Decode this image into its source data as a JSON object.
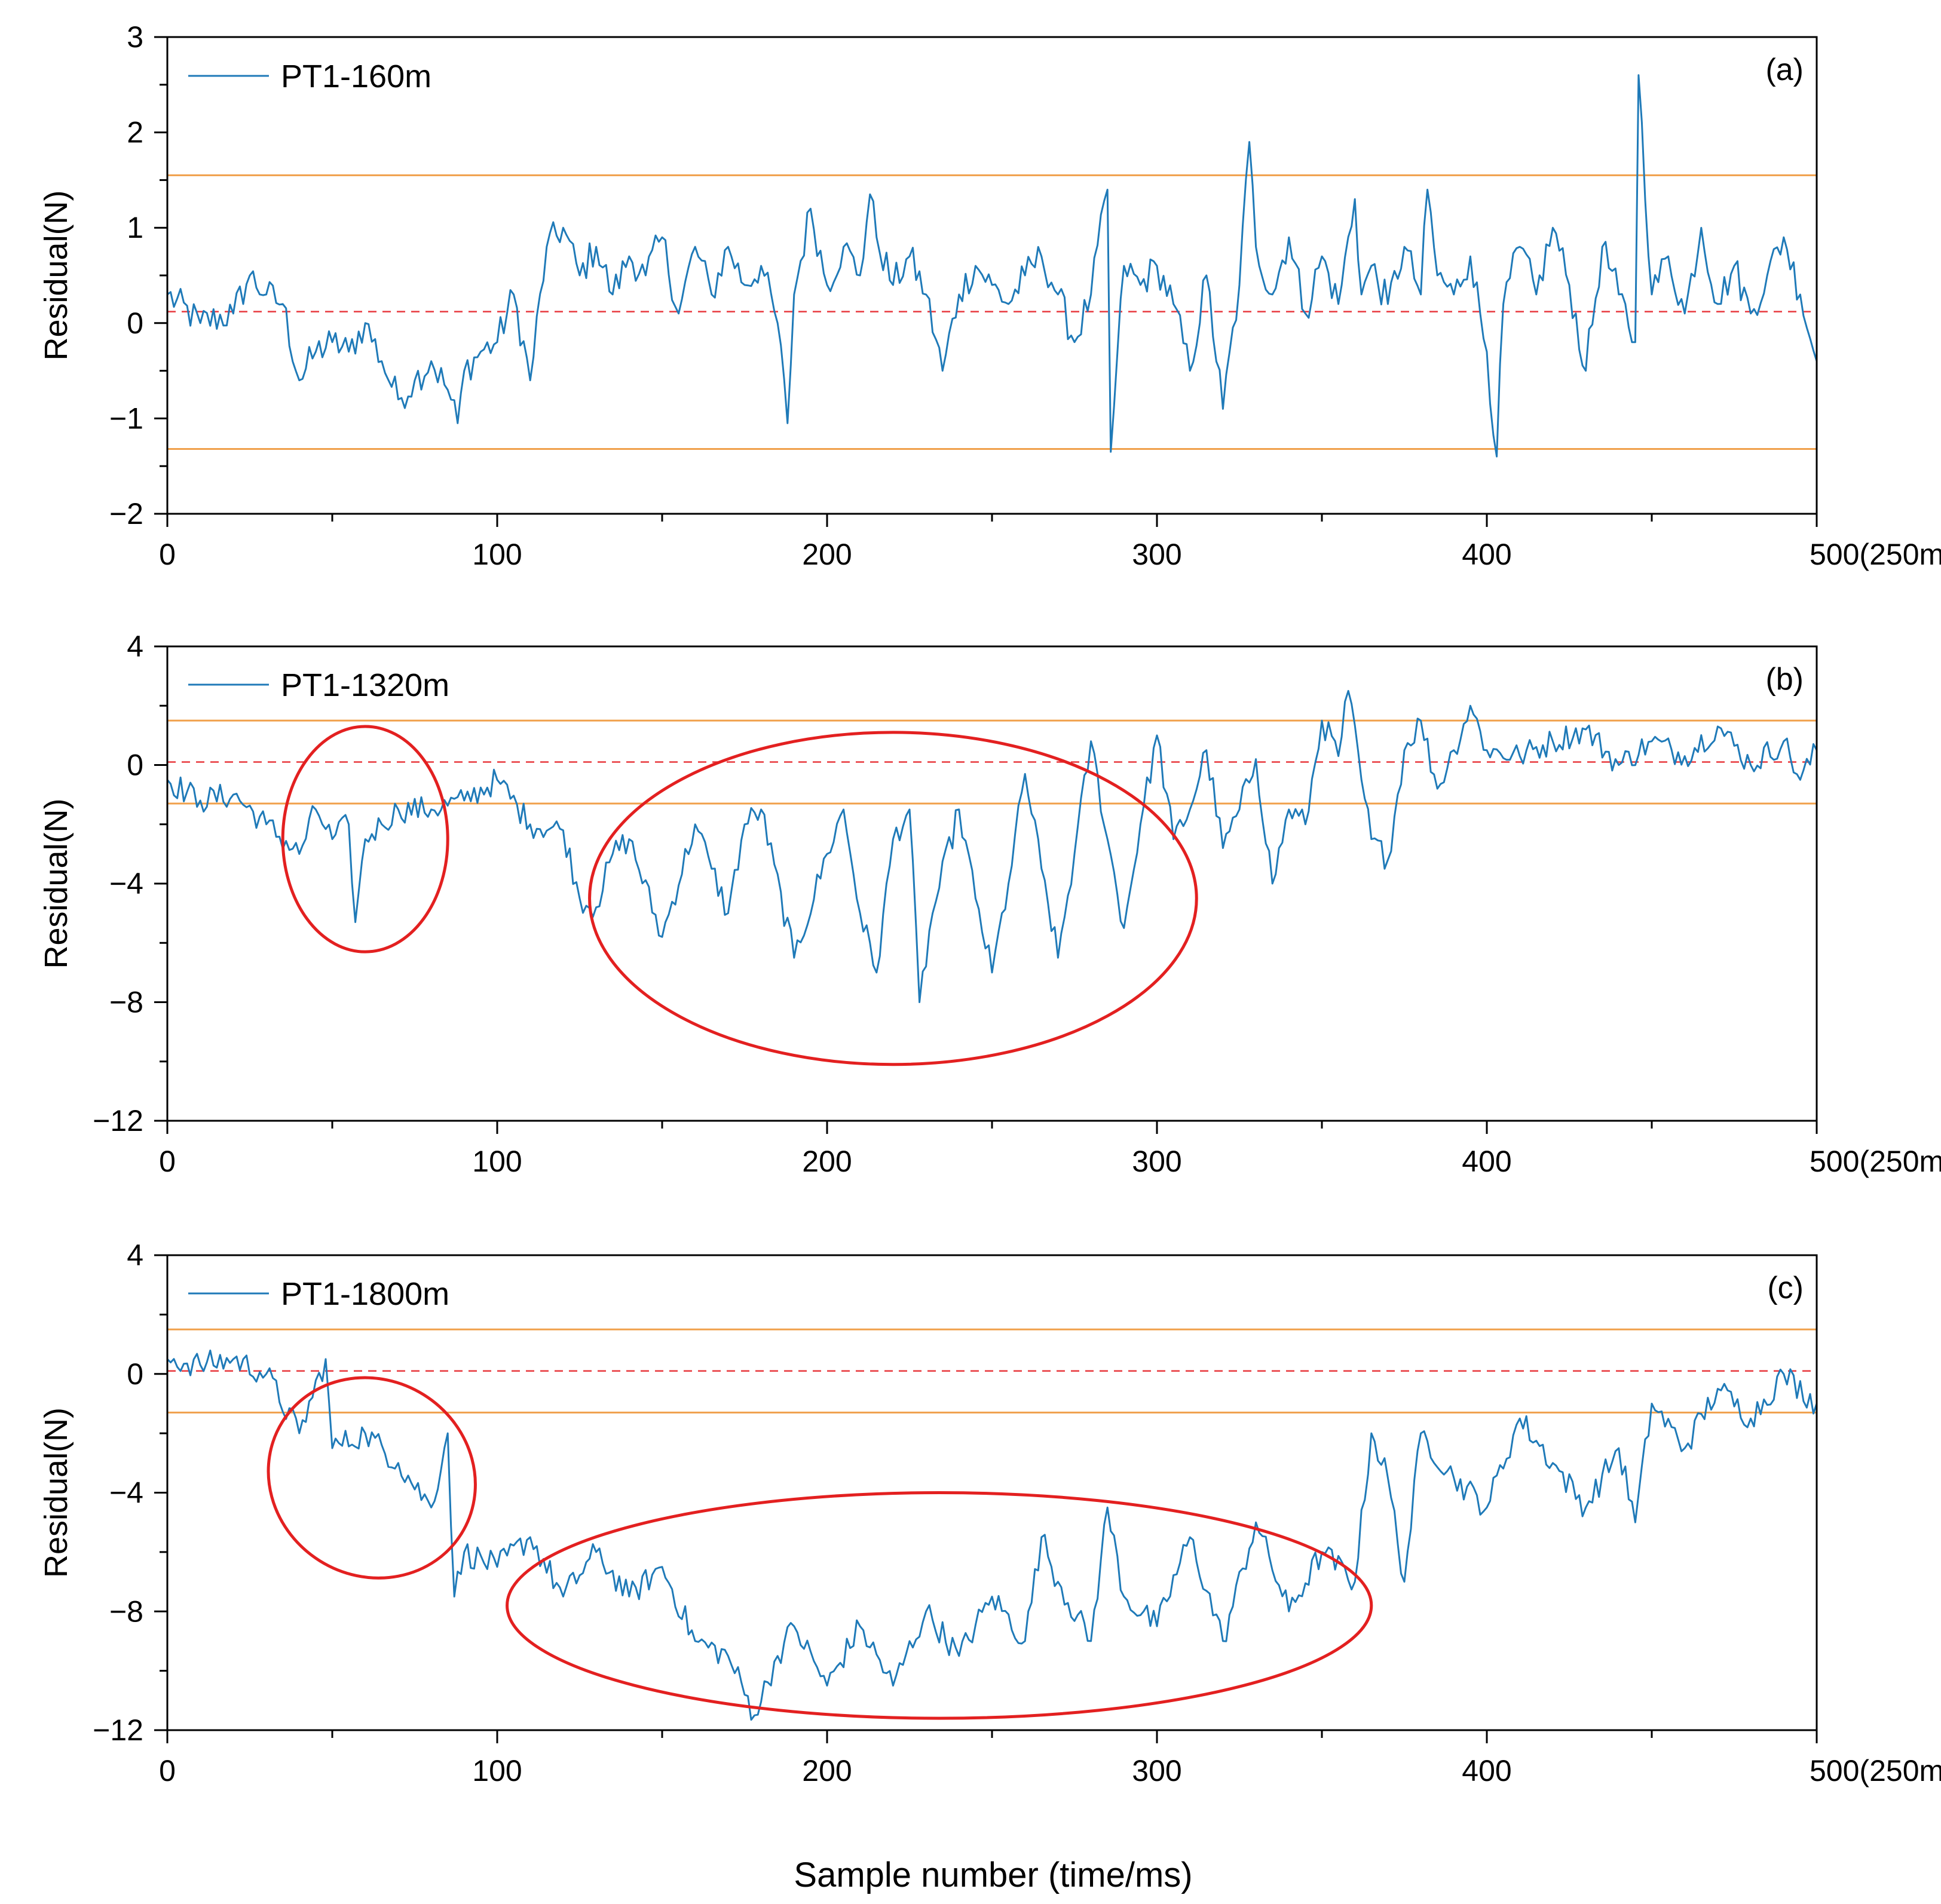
{
  "figure": {
    "xlabel": "Sample number (time/ms)"
  },
  "chart_data": [
    {
      "type": "line",
      "panel_label": "(a)",
      "legend": "PT1-160m",
      "ylabel": "Residual(N)",
      "xlim": [
        0,
        500
      ],
      "ylim": [
        -2,
        3
      ],
      "yticks": [
        "−2",
        "−1",
        "0",
        "1",
        "2",
        "3"
      ],
      "xticks": [
        "0",
        "100",
        "200",
        "300",
        "400",
        "500(250ms)"
      ],
      "upper_limit": 1.55,
      "lower_limit": -1.32,
      "mean_line": 0.12,
      "series": {
        "name": "PT1-160m",
        "sampled_x": [
          0,
          10,
          20,
          25,
          30,
          35,
          40,
          45,
          50,
          55,
          60,
          65,
          70,
          75,
          80,
          85,
          88,
          90,
          95,
          100,
          105,
          110,
          115,
          120,
          125,
          130,
          135,
          140,
          145,
          150,
          155,
          160,
          165,
          170,
          175,
          180,
          185,
          188,
          190,
          195,
          200,
          205,
          210,
          213,
          215,
          220,
          225,
          230,
          235,
          240,
          245,
          250,
          255,
          260,
          265,
          270,
          275,
          280,
          285,
          286,
          290,
          295,
          300,
          305,
          310,
          315,
          320,
          325,
          328,
          330,
          335,
          340,
          345,
          350,
          355,
          360,
          362,
          365,
          370,
          375,
          380,
          382,
          385,
          390,
          395,
          400,
          403,
          405,
          410,
          415,
          420,
          425,
          430,
          435,
          440,
          445,
          446,
          450,
          455,
          460,
          465,
          470,
          475,
          480,
          485,
          490,
          495,
          500
        ],
        "sampled_y": [
          0.3,
          0.0,
          0.1,
          0.5,
          0.3,
          0.2,
          -0.6,
          -0.3,
          -0.2,
          -0.3,
          0.0,
          -0.4,
          -0.8,
          -0.6,
          -0.4,
          -0.7,
          -1.05,
          -0.5,
          -0.3,
          -0.2,
          0.3,
          -0.6,
          0.8,
          1.0,
          0.5,
          0.8,
          0.3,
          0.7,
          0.5,
          0.9,
          0.1,
          0.8,
          0.3,
          0.8,
          0.4,
          0.6,
          0.0,
          -1.05,
          0.3,
          1.2,
          0.4,
          0.8,
          0.5,
          1.35,
          0.9,
          0.4,
          0.7,
          0.3,
          -0.5,
          0.3,
          0.6,
          0.4,
          0.2,
          0.5,
          0.7,
          0.3,
          -0.2,
          0.3,
          1.4,
          -1.35,
          0.6,
          0.4,
          0.6,
          0.2,
          -0.5,
          0.5,
          -0.9,
          0.4,
          1.9,
          0.8,
          0.3,
          0.9,
          0.1,
          0.7,
          0.2,
          1.3,
          0.3,
          0.6,
          0.2,
          0.8,
          0.3,
          1.4,
          0.5,
          0.3,
          0.7,
          -0.3,
          -1.4,
          0.2,
          0.8,
          0.3,
          1.0,
          0.4,
          -0.5,
          0.8,
          0.3,
          -0.2,
          2.6,
          0.3,
          0.7,
          0.1,
          1.0,
          0.2,
          0.6,
          0.1,
          0.5,
          0.9,
          0.3,
          -0.4
        ]
      }
    },
    {
      "type": "line",
      "panel_label": "(b)",
      "legend": "PT1-1320m",
      "ylabel": "Residual(N)",
      "xlim": [
        0,
        500
      ],
      "ylim": [
        -12,
        4
      ],
      "yticks": [
        "−12",
        "−8",
        "−4",
        "0",
        "4"
      ],
      "xticks": [
        "0",
        "100",
        "200",
        "300",
        "400",
        "500(250ms)"
      ],
      "upper_limit": 1.5,
      "lower_limit": -1.3,
      "mean_line": 0.1,
      "series": {
        "name": "PT1-1320m",
        "sampled_x": [
          0,
          10,
          20,
          30,
          40,
          45,
          50,
          55,
          57,
          60,
          65,
          70,
          80,
          90,
          100,
          110,
          120,
          125,
          130,
          135,
          140,
          150,
          160,
          165,
          170,
          175,
          180,
          190,
          200,
          205,
          210,
          215,
          220,
          225,
          228,
          232,
          240,
          245,
          250,
          255,
          260,
          265,
          270,
          275,
          280,
          285,
          290,
          295,
          300,
          305,
          310,
          315,
          320,
          325,
          330,
          335,
          340,
          345,
          350,
          355,
          358,
          362,
          365,
          370,
          375,
          380,
          385,
          390,
          395,
          400,
          410,
          420,
          430,
          440,
          450,
          460,
          470,
          480,
          490,
          495,
          500
        ],
        "sampled_y": [
          -0.5,
          -1.2,
          -1.0,
          -2.0,
          -3.0,
          -1.5,
          -2.5,
          -2.0,
          -5.3,
          -2.5,
          -2.0,
          -1.5,
          -1.5,
          -1.2,
          -0.5,
          -2.0,
          -2.2,
          -4.5,
          -4.8,
          -3.0,
          -2.5,
          -5.8,
          -2.0,
          -3.5,
          -5.0,
          -2.0,
          -1.5,
          -6.5,
          -3.0,
          -1.5,
          -5.0,
          -7.0,
          -2.5,
          -1.5,
          -8.0,
          -5.0,
          -1.5,
          -4.5,
          -7.0,
          -4.0,
          -0.3,
          -3.5,
          -6.5,
          -3.0,
          0.8,
          -2.5,
          -5.5,
          -2.0,
          1.0,
          -2.5,
          -1.5,
          0.5,
          -2.8,
          -1.5,
          0.2,
          -4.0,
          -1.5,
          -2.0,
          1.5,
          0.3,
          2.5,
          -0.5,
          -2.5,
          -3.2,
          0.5,
          1.5,
          -0.8,
          0.5,
          2.0,
          0.5,
          0.3,
          0.8,
          1.2,
          0.0,
          0.8,
          0.3,
          1.3,
          0.0,
          0.8,
          -0.5,
          0.5
        ]
      }
    },
    {
      "type": "line",
      "panel_label": "(c)",
      "legend": "PT1-1800m",
      "ylabel": "Residual(N)",
      "xlim": [
        0,
        500
      ],
      "ylim": [
        -12,
        4
      ],
      "yticks": [
        "−12",
        "−8",
        "−4",
        "0",
        "4"
      ],
      "xticks": [
        "0",
        "100",
        "200",
        "300",
        "400",
        "500(250ms)"
      ],
      "upper_limit": 1.5,
      "lower_limit": -1.3,
      "mean_line": 0.1,
      "series": {
        "name": "PT1-1800m",
        "sampled_x": [
          0,
          10,
          20,
          30,
          40,
          48,
          50,
          60,
          70,
          80,
          85,
          87,
          90,
          100,
          110,
          120,
          130,
          140,
          150,
          160,
          170,
          178,
          185,
          190,
          200,
          210,
          220,
          230,
          240,
          250,
          260,
          265,
          270,
          280,
          285,
          290,
          300,
          310,
          320,
          330,
          340,
          350,
          360,
          365,
          370,
          375,
          380,
          390,
          400,
          410,
          420,
          430,
          440,
          445,
          450,
          460,
          470,
          480,
          490,
          500
        ],
        "sampled_y": [
          0.5,
          0.3,
          0.5,
          0.0,
          -2.0,
          0.5,
          -2.5,
          -2.0,
          -3.0,
          -4.5,
          -2.0,
          -7.5,
          -6.0,
          -6.5,
          -5.5,
          -7.5,
          -6.0,
          -7.5,
          -6.5,
          -9.0,
          -9.5,
          -11.5,
          -9.5,
          -8.5,
          -10.5,
          -8.5,
          -10.5,
          -8.0,
          -9.5,
          -7.5,
          -9.0,
          -5.5,
          -7.0,
          -9.0,
          -4.5,
          -7.5,
          -8.5,
          -5.5,
          -9.0,
          -5.0,
          -8.0,
          -6.0,
          -7.0,
          -2.0,
          -3.5,
          -7.0,
          -2.0,
          -3.5,
          -4.5,
          -1.5,
          -3.0,
          -4.5,
          -2.5,
          -5.0,
          -1.0,
          -2.5,
          -0.5,
          -1.5,
          0.0,
          -1.0
        ]
      }
    }
  ]
}
